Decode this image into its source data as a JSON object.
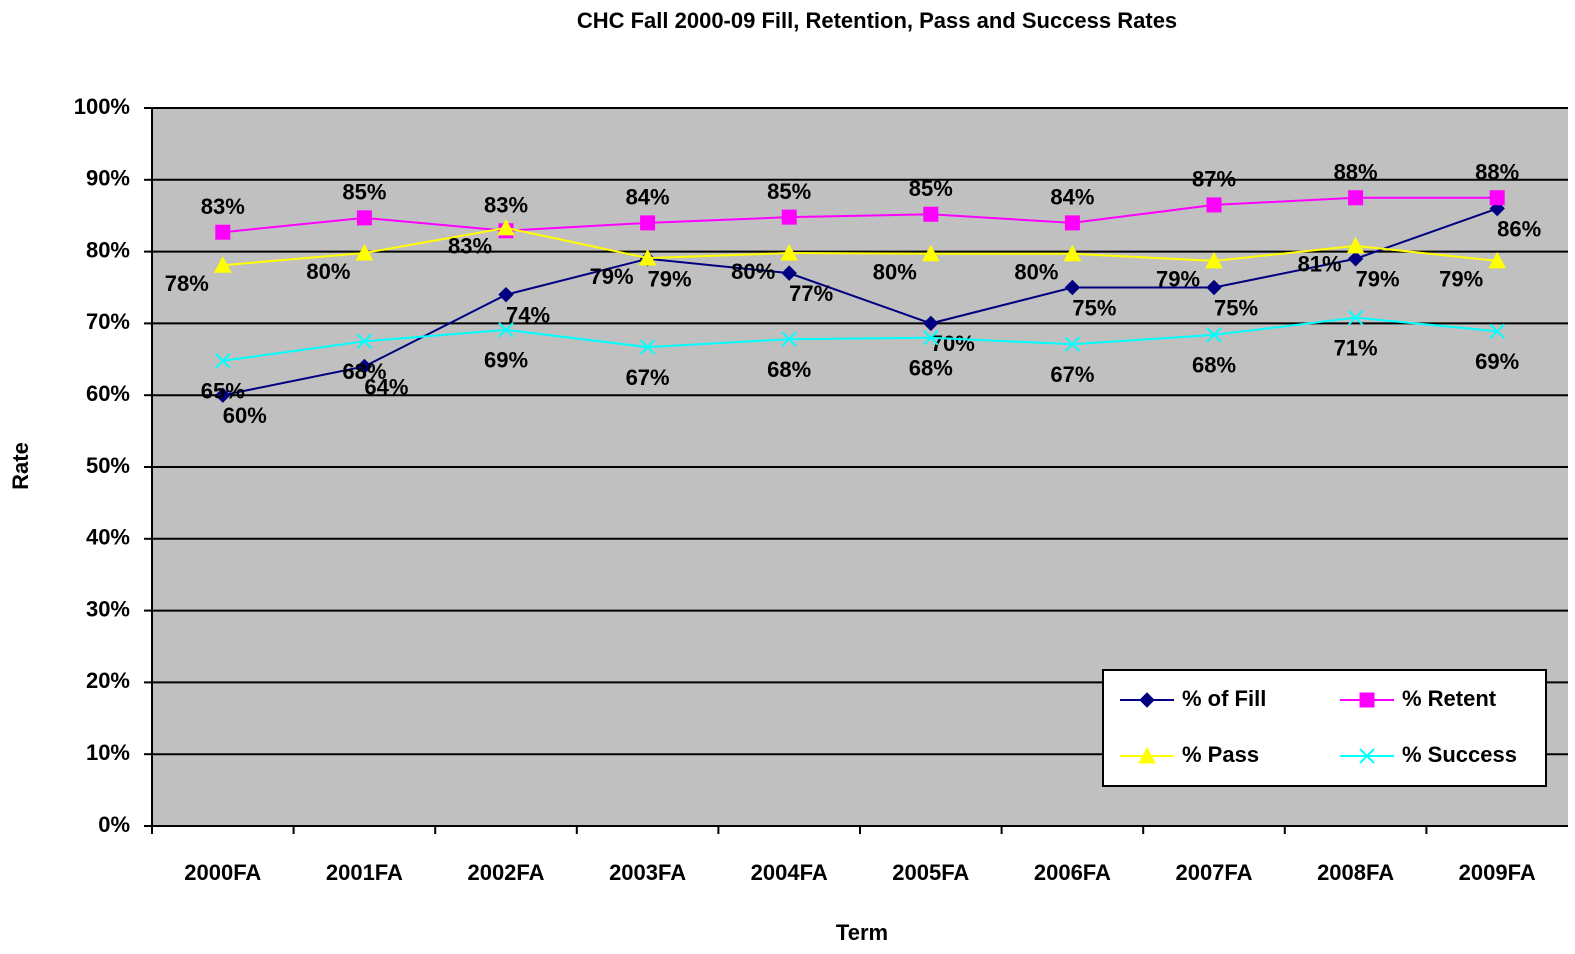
{
  "chart_data": {
    "type": "line",
    "title": "CHC Fall 2000-09 Fill, Retention, Pass and Success Rates",
    "x_label": "Term",
    "y_label": "Rate",
    "categories": [
      "2000FA",
      "2001FA",
      "2002FA",
      "2003FA",
      "2004FA",
      "2005FA",
      "2006FA",
      "2007FA",
      "2008FA",
      "2009FA"
    ],
    "series": [
      {
        "name": "% of Fill",
        "color": "#000080",
        "marker": "diamond",
        "values": [
          60,
          64,
          74,
          79,
          77,
          70,
          75,
          75,
          79,
          86
        ],
        "value_labels": [
          "60%",
          "64%",
          "74%",
          "79%",
          "77%",
          "70%",
          "75%",
          "75%",
          "79%",
          "86%"
        ]
      },
      {
        "name": "% Retent",
        "color": "#ff00ff",
        "marker": "square",
        "values": [
          82.7,
          84.7,
          82.9,
          84.0,
          84.8,
          85.2,
          84.0,
          86.5,
          87.5,
          87.5
        ],
        "value_labels": [
          "83%",
          "85%",
          "83%",
          "84%",
          "85%",
          "85%",
          "84%",
          "87%",
          "88%",
          "88%"
        ]
      },
      {
        "name": "% Pass",
        "color": "#ffff00",
        "marker": "triangle",
        "values": [
          78.1,
          79.8,
          83.3,
          79.1,
          79.8,
          79.7,
          79.7,
          78.7,
          80.8,
          78.7
        ],
        "value_labels": [
          "78%",
          "80%",
          "83%",
          "79%",
          "80%",
          "80%",
          "80%",
          "79%",
          "81%",
          "79%"
        ]
      },
      {
        "name": "% Success",
        "color": "#00ffff",
        "marker": "x",
        "values": [
          64.8,
          67.5,
          69.1,
          66.7,
          67.8,
          68.0,
          67.1,
          68.4,
          70.8,
          68.9
        ],
        "value_labels": [
          "65%",
          "68%",
          "69%",
          "67%",
          "68%",
          "68%",
          "67%",
          "68%",
          "71%",
          "69%"
        ]
      }
    ],
    "ylim": [
      0,
      100
    ],
    "yticks": [
      {
        "value": 0,
        "label": "0%"
      },
      {
        "value": 10,
        "label": "10%"
      },
      {
        "value": 20,
        "label": "20%"
      },
      {
        "value": 30,
        "label": "30%"
      },
      {
        "value": 40,
        "label": "40%"
      },
      {
        "value": 50,
        "label": "50%"
      },
      {
        "value": 60,
        "label": "60%"
      },
      {
        "value": 70,
        "label": "70%"
      },
      {
        "value": 80,
        "label": "80%"
      },
      {
        "value": 90,
        "label": "90%"
      },
      {
        "value": 100,
        "label": "100%"
      }
    ],
    "grid": true,
    "plot_background": "#c0c0c0",
    "legend_position": "lower right"
  }
}
